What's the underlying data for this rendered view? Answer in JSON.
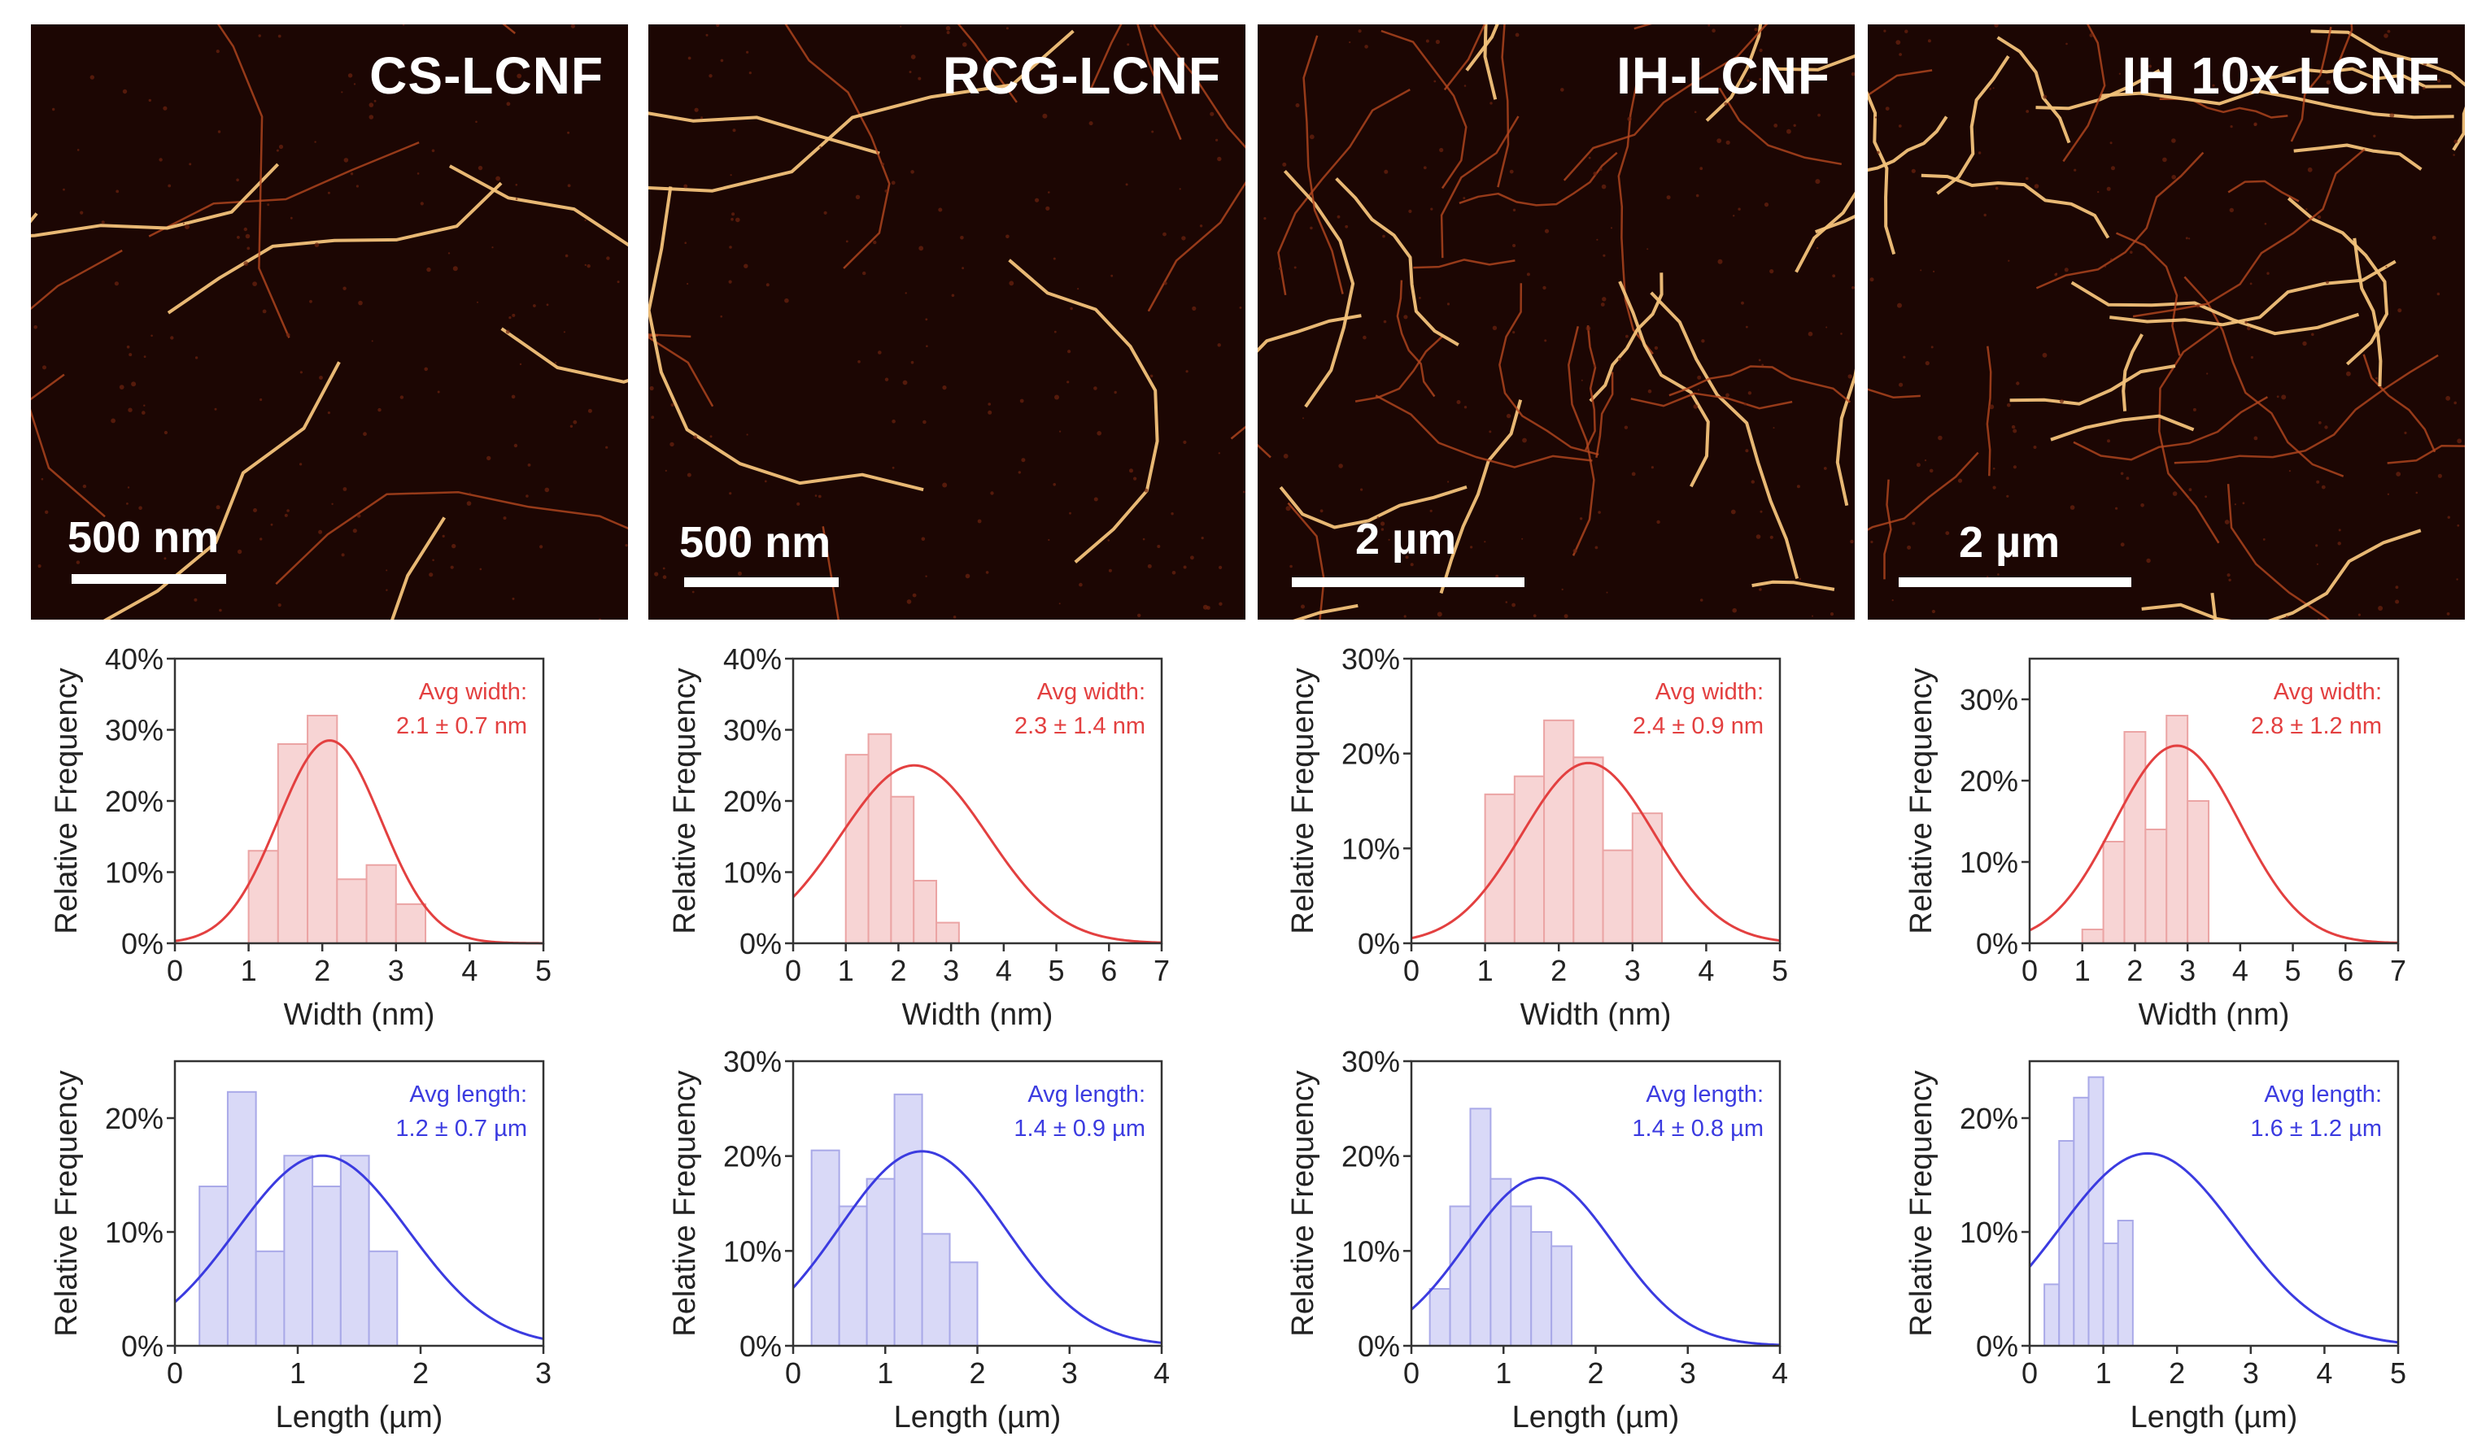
{
  "panels": [
    {
      "name": "CS-LCNF",
      "scale_bar": "500 nm",
      "width_chart": {
        "type": "bar",
        "xlabel": "Width (nm)",
        "ylabel": "Relative Frequency",
        "xlim": [
          0,
          5
        ],
        "ylim": [
          0,
          40
        ],
        "xticks": [
          "0",
          "1",
          "2",
          "3",
          "4",
          "5"
        ],
        "yticks": [
          "0%",
          "10%",
          "20%",
          "30%",
          "40%"
        ],
        "annotation": [
          "Avg width:",
          "2.1 ± 0.7 nm"
        ],
        "bin_start": 1.0,
        "bin_width": 0.4,
        "values": [
          13,
          28,
          32,
          9,
          11,
          5.5
        ],
        "fit": {
          "mean": 2.1,
          "sd": 0.7,
          "peak": 28.5
        },
        "color": "#e34040"
      },
      "length_chart": {
        "type": "bar",
        "xlabel": "Length (µm)",
        "ylabel": "Relative Frequency",
        "xlim": [
          0,
          3
        ],
        "ylim": [
          0,
          25
        ],
        "xticks": [
          "0",
          "1",
          "2",
          "3"
        ],
        "yticks": [
          "0%",
          "10%",
          "20%"
        ],
        "ytick_values": [
          0,
          10,
          20
        ],
        "annotation": [
          "Avg length:",
          "1.2 ± 0.7 µm"
        ],
        "bin_start": 0.2,
        "bin_width": 0.23,
        "values": [
          14,
          22.3,
          8.3,
          16.7,
          14,
          16.7,
          8.3
        ],
        "fit": {
          "mean": 1.2,
          "sd": 0.7,
          "peak": 16.7
        },
        "color": "#3b3be0"
      }
    },
    {
      "name": "RCG-LCNF",
      "scale_bar": "500 nm",
      "width_chart": {
        "type": "bar",
        "xlabel": "Width (nm)",
        "ylabel": "Relative Frequency",
        "xlim": [
          0,
          7
        ],
        "ylim": [
          0,
          40
        ],
        "xticks": [
          "0",
          "1",
          "2",
          "3",
          "4",
          "5",
          "6",
          "7"
        ],
        "yticks": [
          "0%",
          "10%",
          "20%",
          "30%",
          "40%"
        ],
        "annotation": [
          "Avg width:",
          "2.3 ± 1.4 nm"
        ],
        "bin_start": 1.0,
        "bin_width": 0.43,
        "values": [
          26.5,
          29.4,
          20.6,
          8.8,
          2.9
        ],
        "fit": {
          "mean": 2.3,
          "sd": 1.4,
          "peak": 25
        },
        "color": "#e34040"
      },
      "length_chart": {
        "type": "bar",
        "xlabel": "Length (µm)",
        "ylabel": "Relative Frequency",
        "xlim": [
          0,
          4
        ],
        "ylim": [
          0,
          30
        ],
        "xticks": [
          "0",
          "1",
          "2",
          "3",
          "4"
        ],
        "yticks": [
          "0%",
          "10%",
          "20%",
          "30%"
        ],
        "ytick_values": [
          0,
          10,
          20,
          30
        ],
        "annotation": [
          "Avg length:",
          "1.4 ± 0.9 µm"
        ],
        "bin_start": 0.2,
        "bin_width": 0.3,
        "values": [
          20.6,
          14.7,
          17.6,
          26.5,
          11.8,
          8.8
        ],
        "fit": {
          "mean": 1.4,
          "sd": 0.9,
          "peak": 20.5
        },
        "color": "#3b3be0"
      }
    },
    {
      "name": "IH-LCNF",
      "scale_bar": "2 µm",
      "width_chart": {
        "type": "bar",
        "xlabel": "Width (nm)",
        "ylabel": "Relative Frequency",
        "xlim": [
          0,
          5
        ],
        "ylim": [
          0,
          30
        ],
        "xticks": [
          "0",
          "1",
          "2",
          "3",
          "4",
          "5"
        ],
        "yticks": [
          "0%",
          "10%",
          "20%",
          "30%"
        ],
        "annotation": [
          "Avg width:",
          "2.4 ± 0.9 nm"
        ],
        "bin_start": 1.0,
        "bin_width": 0.4,
        "values": [
          15.7,
          17.6,
          23.5,
          19.6,
          9.8,
          13.7
        ],
        "fit": {
          "mean": 2.4,
          "sd": 0.9,
          "peak": 19
        },
        "color": "#e34040"
      },
      "length_chart": {
        "type": "bar",
        "xlabel": "Length (µm)",
        "ylabel": "Relative Frequency",
        "xlim": [
          0,
          4
        ],
        "ylim": [
          0,
          30
        ],
        "xticks": [
          "0",
          "1",
          "2",
          "3",
          "4"
        ],
        "yticks": [
          "0%",
          "10%",
          "20%",
          "30%"
        ],
        "ytick_values": [
          0,
          10,
          20,
          30
        ],
        "annotation": [
          "Avg length:",
          "1.4 ± 0.8 µm"
        ],
        "bin_start": 0.2,
        "bin_width": 0.22,
        "values": [
          6,
          14.7,
          25,
          17.6,
          14.7,
          12,
          10.5
        ],
        "fit": {
          "mean": 1.4,
          "sd": 0.8,
          "peak": 17.7
        },
        "color": "#3b3be0"
      }
    },
    {
      "name": "IH 10x-LCNF",
      "scale_bar": "2 µm",
      "width_chart": {
        "type": "bar",
        "xlabel": "Width (nm)",
        "ylabel": "Relative Frequency",
        "xlim": [
          0,
          7
        ],
        "ylim": [
          0,
          35
        ],
        "xticks": [
          "0",
          "1",
          "2",
          "3",
          "4",
          "5",
          "6",
          "7"
        ],
        "yticks": [
          "0%",
          "10%",
          "20%",
          "30%"
        ],
        "ytick_values": [
          0,
          10,
          20,
          30
        ],
        "annotation": [
          "Avg width:",
          "2.8 ± 1.2 nm"
        ],
        "bin_start": 1.0,
        "bin_width": 0.4,
        "values": [
          1.7,
          12.5,
          26,
          14,
          28,
          17.5
        ],
        "fit": {
          "mean": 2.8,
          "sd": 1.2,
          "peak": 24.3
        },
        "color": "#e34040"
      },
      "length_chart": {
        "type": "bar",
        "xlabel": "Length (µm)",
        "ylabel": "Relative Frequency",
        "xlim": [
          0,
          5
        ],
        "ylim": [
          0,
          25
        ],
        "xticks": [
          "0",
          "1",
          "2",
          "3",
          "4",
          "5"
        ],
        "yticks": [
          "0%",
          "10%",
          "20%"
        ],
        "ytick_values": [
          0,
          10,
          20
        ],
        "annotation": [
          "Avg length:",
          "1.6 ± 1.2 µm"
        ],
        "bin_start": 0.2,
        "bin_width": 0.2,
        "values": [
          5.4,
          18,
          21.8,
          23.6,
          9,
          11
        ],
        "fit": {
          "mean": 1.6,
          "sd": 1.2,
          "peak": 16.9
        },
        "color": "#3b3be0"
      }
    }
  ]
}
